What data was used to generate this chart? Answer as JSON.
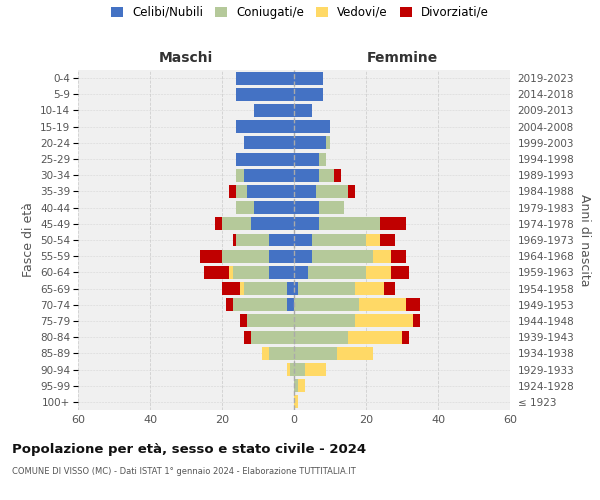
{
  "age_groups": [
    "100+",
    "95-99",
    "90-94",
    "85-89",
    "80-84",
    "75-79",
    "70-74",
    "65-69",
    "60-64",
    "55-59",
    "50-54",
    "45-49",
    "40-44",
    "35-39",
    "30-34",
    "25-29",
    "20-24",
    "15-19",
    "10-14",
    "5-9",
    "0-4"
  ],
  "birth_years": [
    "≤ 1923",
    "1924-1928",
    "1929-1933",
    "1934-1938",
    "1939-1943",
    "1944-1948",
    "1949-1953",
    "1954-1958",
    "1959-1963",
    "1964-1968",
    "1969-1973",
    "1974-1978",
    "1979-1983",
    "1984-1988",
    "1989-1993",
    "1994-1998",
    "1999-2003",
    "2004-2008",
    "2009-2013",
    "2014-2018",
    "2019-2023"
  ],
  "colors": {
    "celibi": "#4472c4",
    "coniugati": "#b5c99a",
    "vedovi": "#ffd966",
    "divorziati": "#c00000"
  },
  "males": {
    "celibi": [
      0,
      0,
      0,
      0,
      0,
      0,
      2,
      2,
      7,
      7,
      7,
      12,
      11,
      13,
      14,
      16,
      14,
      16,
      11,
      16,
      16
    ],
    "coniugati": [
      0,
      0,
      1,
      7,
      12,
      13,
      15,
      12,
      10,
      13,
      9,
      8,
      5,
      3,
      2,
      0,
      0,
      0,
      0,
      0,
      0
    ],
    "vedovi": [
      0,
      0,
      1,
      2,
      0,
      0,
      0,
      1,
      1,
      0,
      0,
      0,
      0,
      0,
      0,
      0,
      0,
      0,
      0,
      0,
      0
    ],
    "divorziati": [
      0,
      0,
      0,
      0,
      2,
      2,
      2,
      5,
      7,
      6,
      1,
      2,
      0,
      2,
      0,
      0,
      0,
      0,
      0,
      0,
      0
    ]
  },
  "females": {
    "celibi": [
      0,
      0,
      0,
      0,
      0,
      0,
      0,
      1,
      4,
      5,
      5,
      7,
      7,
      6,
      7,
      7,
      9,
      10,
      5,
      8,
      8
    ],
    "coniugati": [
      0,
      1,
      3,
      12,
      15,
      17,
      18,
      16,
      16,
      17,
      15,
      17,
      7,
      9,
      4,
      2,
      1,
      0,
      0,
      0,
      0
    ],
    "vedovi": [
      1,
      2,
      6,
      10,
      15,
      16,
      13,
      8,
      7,
      5,
      4,
      0,
      0,
      0,
      0,
      0,
      0,
      0,
      0,
      0,
      0
    ],
    "divorziati": [
      0,
      0,
      0,
      0,
      2,
      2,
      4,
      3,
      5,
      4,
      4,
      7,
      0,
      2,
      2,
      0,
      0,
      0,
      0,
      0,
      0
    ]
  },
  "title_main": "Popolazione per età, sesso e stato civile - 2024",
  "title_sub": "COMUNE DI VISSO (MC) - Dati ISTAT 1° gennaio 2024 - Elaborazione TUTTITALIA.IT",
  "xlabel_left": "Maschi",
  "xlabel_right": "Femmine",
  "ylabel_left": "Fasce di età",
  "ylabel_right": "Anni di nascita",
  "xlim": 60,
  "background_color": "#f0f0f0",
  "grid_color": "#cccccc"
}
